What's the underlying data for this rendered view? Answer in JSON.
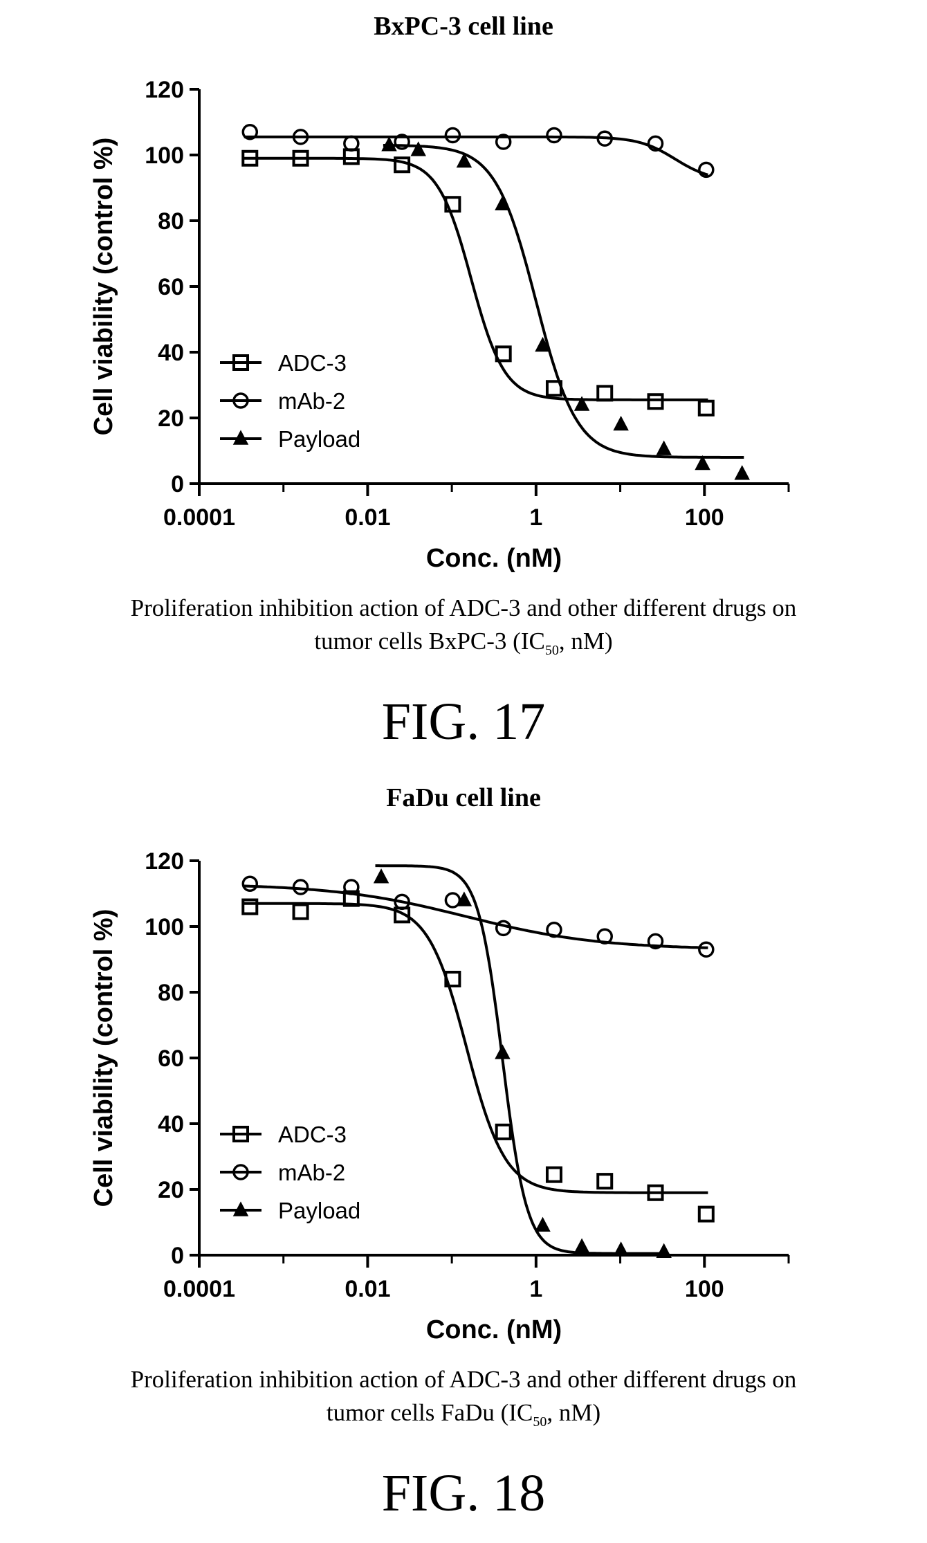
{
  "figures": [
    {
      "fig_label": "FIG. 17",
      "caption_line1": "Proliferation inhibition action of ADC-3 and other different drugs on",
      "caption_line2_pre": "tumor cells BxPC-3 (IC",
      "caption_line2_sub": "50",
      "caption_line2_post": ", nM)"
    },
    {
      "fig_label": "FIG. 18",
      "caption_line1": "Proliferation inhibition action of ADC-3 and other different drugs on",
      "caption_line2_pre": "tumor cells FaDu (IC",
      "caption_line2_sub": "50",
      "caption_line2_post": ", nM)"
    }
  ],
  "chart_data": [
    {
      "type": "scatter",
      "title": "BxPC-3 cell line",
      "xlabel": "Conc. (nM)",
      "ylabel": "Cell viability (control %)",
      "x_scale": "log",
      "xlim": [
        0.0001,
        1000
      ],
      "ylim": [
        0,
        120
      ],
      "x_ticks": [
        "0.0001",
        "0.01",
        "1",
        "100"
      ],
      "y_ticks": [
        "0",
        "20",
        "40",
        "60",
        "80",
        "100",
        "120"
      ],
      "legend_position": "lower-left",
      "grid": false,
      "series": [
        {
          "name": "ADC-3",
          "marker": "square",
          "fill": "none",
          "x": [
            0.0004,
            0.0016,
            0.0064,
            0.0256,
            0.1024,
            0.4096,
            1.6384,
            6.5536,
            26.2144,
            104.8576
          ],
          "y": [
            99,
            99,
            99.5,
            97,
            85,
            39.5,
            29,
            27.5,
            25,
            23
          ],
          "fit": {
            "bottom": 25.5,
            "top": 99,
            "ec50": 0.17,
            "hill": 2.2
          }
        },
        {
          "name": "mAb-2",
          "marker": "circle",
          "fill": "none",
          "x": [
            0.0004,
            0.0016,
            0.0064,
            0.0256,
            0.1024,
            0.4096,
            1.6384,
            6.5536,
            26.2144,
            104.8576
          ],
          "y": [
            107,
            105.5,
            103.5,
            104,
            106,
            104,
            106,
            105,
            103.5,
            95.5
          ],
          "fit": {
            "bottom": 92,
            "top": 105.5,
            "ec50": 45,
            "hill": 2.0
          }
        },
        {
          "name": "Payload",
          "marker": "triangle",
          "fill": "#000000",
          "x": [
            0.018,
            0.04,
            0.14,
            0.4,
            1.2,
            3.5,
            10.2,
            33,
            95,
            280
          ],
          "y": [
            103,
            101.5,
            98,
            85,
            42,
            24,
            18,
            10.5,
            6,
            3
          ],
          "fit": {
            "bottom": 8,
            "top": 103,
            "ec50": 1.0,
            "hill": 1.8
          }
        }
      ]
    },
    {
      "type": "scatter",
      "title": "FaDu cell line",
      "xlabel": "Conc. (nM)",
      "ylabel": "Cell viability (control %)",
      "x_scale": "log",
      "xlim": [
        0.0001,
        1000
      ],
      "ylim": [
        0,
        120
      ],
      "x_ticks": [
        "0.0001",
        "0.01",
        "1",
        "100"
      ],
      "y_ticks": [
        "0",
        "20",
        "40",
        "60",
        "80",
        "100",
        "120"
      ],
      "legend_position": "lower-left",
      "grid": false,
      "series": [
        {
          "name": "ADC-3",
          "marker": "square",
          "fill": "none",
          "x": [
            0.0004,
            0.0016,
            0.0064,
            0.0256,
            0.1024,
            0.4096,
            1.6384,
            6.5536,
            26.2144,
            104.8576
          ],
          "y": [
            106,
            104.5,
            108.5,
            103.5,
            84,
            37.5,
            24.5,
            22.5,
            19,
            12.5
          ],
          "fit": {
            "bottom": 19,
            "top": 107,
            "ec50": 0.15,
            "hill": 1.9
          }
        },
        {
          "name": "mAb-2",
          "marker": "circle",
          "fill": "none",
          "x": [
            0.0004,
            0.0016,
            0.0064,
            0.0256,
            0.1024,
            0.4096,
            1.6384,
            6.5536,
            26.2144,
            104.8576
          ],
          "y": [
            113,
            112,
            112,
            107.5,
            108,
            99.5,
            99,
            97,
            95.5,
            93
          ],
          "fit": {
            "bottom": 93,
            "top": 113,
            "ec50": 0.15,
            "hill": 0.55
          }
        },
        {
          "name": "Payload",
          "marker": "triangle",
          "fill": "#000000",
          "x": [
            0.0145,
            0.14,
            0.4,
            1.2,
            3.5,
            10.2,
            33
          ],
          "y": [
            115,
            108,
            61.5,
            9,
            2.5,
            1.5,
            1
          ],
          "fit": {
            "bottom": 0.5,
            "top": 118.5,
            "ec50": 0.4,
            "hill": 3.0
          }
        }
      ]
    }
  ]
}
